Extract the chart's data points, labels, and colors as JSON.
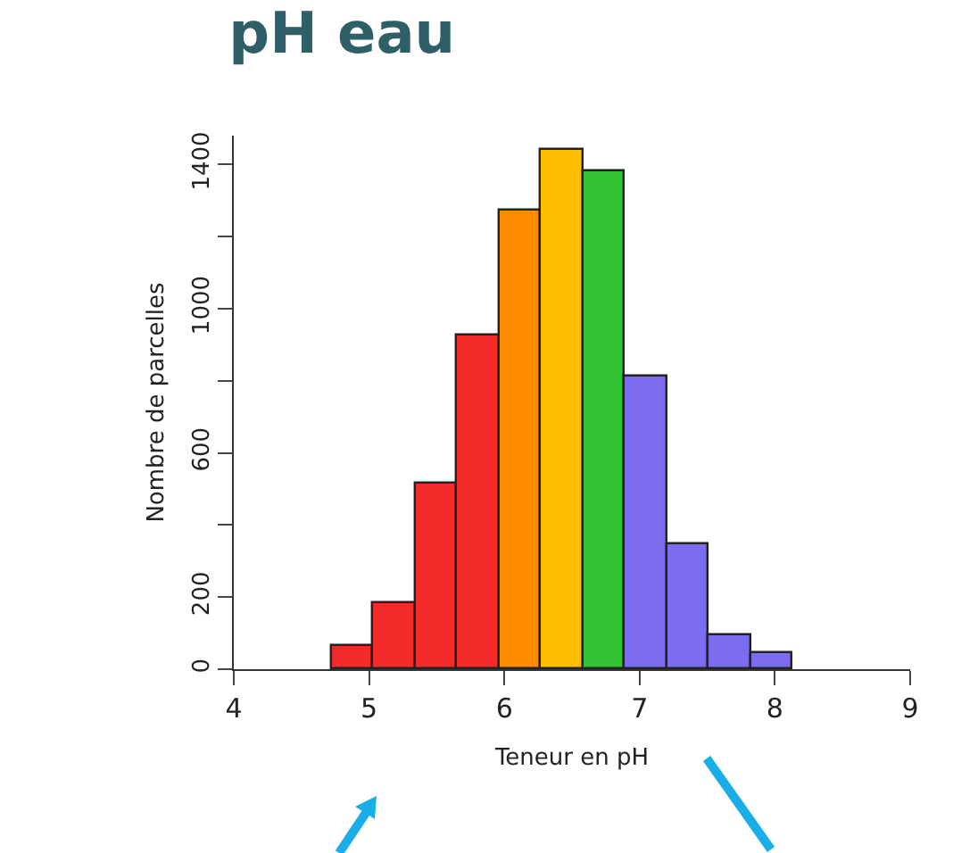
{
  "chart_data": {
    "type": "histogram",
    "title": "pH eau",
    "xlabel": "Teneur en pH",
    "ylabel": "Nombre de parcelles",
    "bins": [
      4.72,
      5.03,
      5.34,
      5.65,
      5.96,
      6.27,
      6.58,
      6.89,
      7.2,
      7.51,
      7.82,
      8.13
    ],
    "values": [
      63,
      184,
      515,
      925,
      1271,
      1440,
      1380,
      812,
      346,
      95,
      45
    ],
    "colors": [
      "#f52a2a",
      "#f52a2a",
      "#f52a2a",
      "#f52a2a",
      "#ff8c00",
      "#ffbf00",
      "#33c433",
      "#7b6cf0",
      "#7b6cf0",
      "#7b6cf0",
      "#7b6cf0"
    ],
    "xlim": [
      4,
      9
    ],
    "xticks": [
      4,
      5,
      6,
      7,
      8,
      9
    ],
    "ylim": [
      0,
      1480
    ],
    "yticks": [
      0,
      200,
      {
        "value": 400,
        "label": null
      },
      600,
      {
        "value": 800,
        "label": null
      },
      {
        "value": 1000,
        "label": "1000"
      },
      {
        "value": 1200,
        "label": null
      },
      1400
    ],
    "grid": false,
    "legend": false
  }
}
